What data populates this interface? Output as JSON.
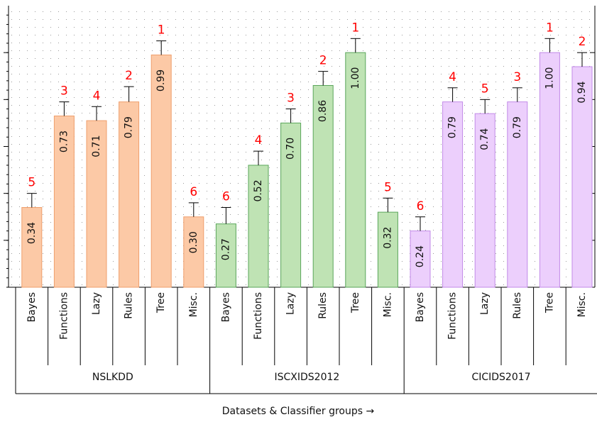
{
  "chart_data": {
    "type": "bar",
    "categories": [
      "Bayes",
      "Functions",
      "Lazy",
      "Rules",
      "Tree",
      "Misc."
    ],
    "series": [
      {
        "name": "NSLKDD",
        "color": "#fcc9a6",
        "edge": "#ef9f6c",
        "values": [
          0.34,
          0.73,
          0.71,
          0.79,
          0.99,
          0.3
        ],
        "value_labels": [
          "0.34",
          "0.73",
          "0.71",
          "0.79",
          "0.99",
          "0.30"
        ],
        "errors": [
          0.06,
          0.06,
          0.06,
          0.065,
          0.06,
          0.06
        ],
        "ranks": [
          5,
          3,
          4,
          2,
          1,
          6
        ]
      },
      {
        "name": "ISCXIDS2012",
        "color": "#bfe3b4",
        "edge": "#5aa65a",
        "values": [
          0.27,
          0.52,
          0.7,
          0.86,
          1.0,
          0.32
        ],
        "value_labels": [
          "0.27",
          "0.52",
          "0.70",
          "0.86",
          "1.00",
          "0.32"
        ],
        "errors": [
          0.07,
          0.06,
          0.06,
          0.06,
          0.06,
          0.06
        ],
        "ranks": [
          6,
          4,
          3,
          2,
          1,
          5
        ]
      },
      {
        "name": "CICIDS2017",
        "color": "#eccffc",
        "edge": "#c28ae8",
        "values": [
          0.24,
          0.79,
          0.74,
          0.79,
          1.0,
          0.94
        ],
        "value_labels": [
          "0.24",
          "0.79",
          "0.74",
          "0.79",
          "1.00",
          "0.94"
        ],
        "errors": [
          0.06,
          0.06,
          0.06,
          0.06,
          0.06,
          0.06
        ],
        "ranks": [
          6,
          4,
          5,
          3,
          1,
          2
        ]
      }
    ],
    "x_label": "Datasets & Classifier groups →",
    "ylim": [
      0,
      1.2
    ],
    "yticks": [
      0.2,
      0.4,
      0.6,
      0.8,
      1
    ],
    "grid": true
  }
}
